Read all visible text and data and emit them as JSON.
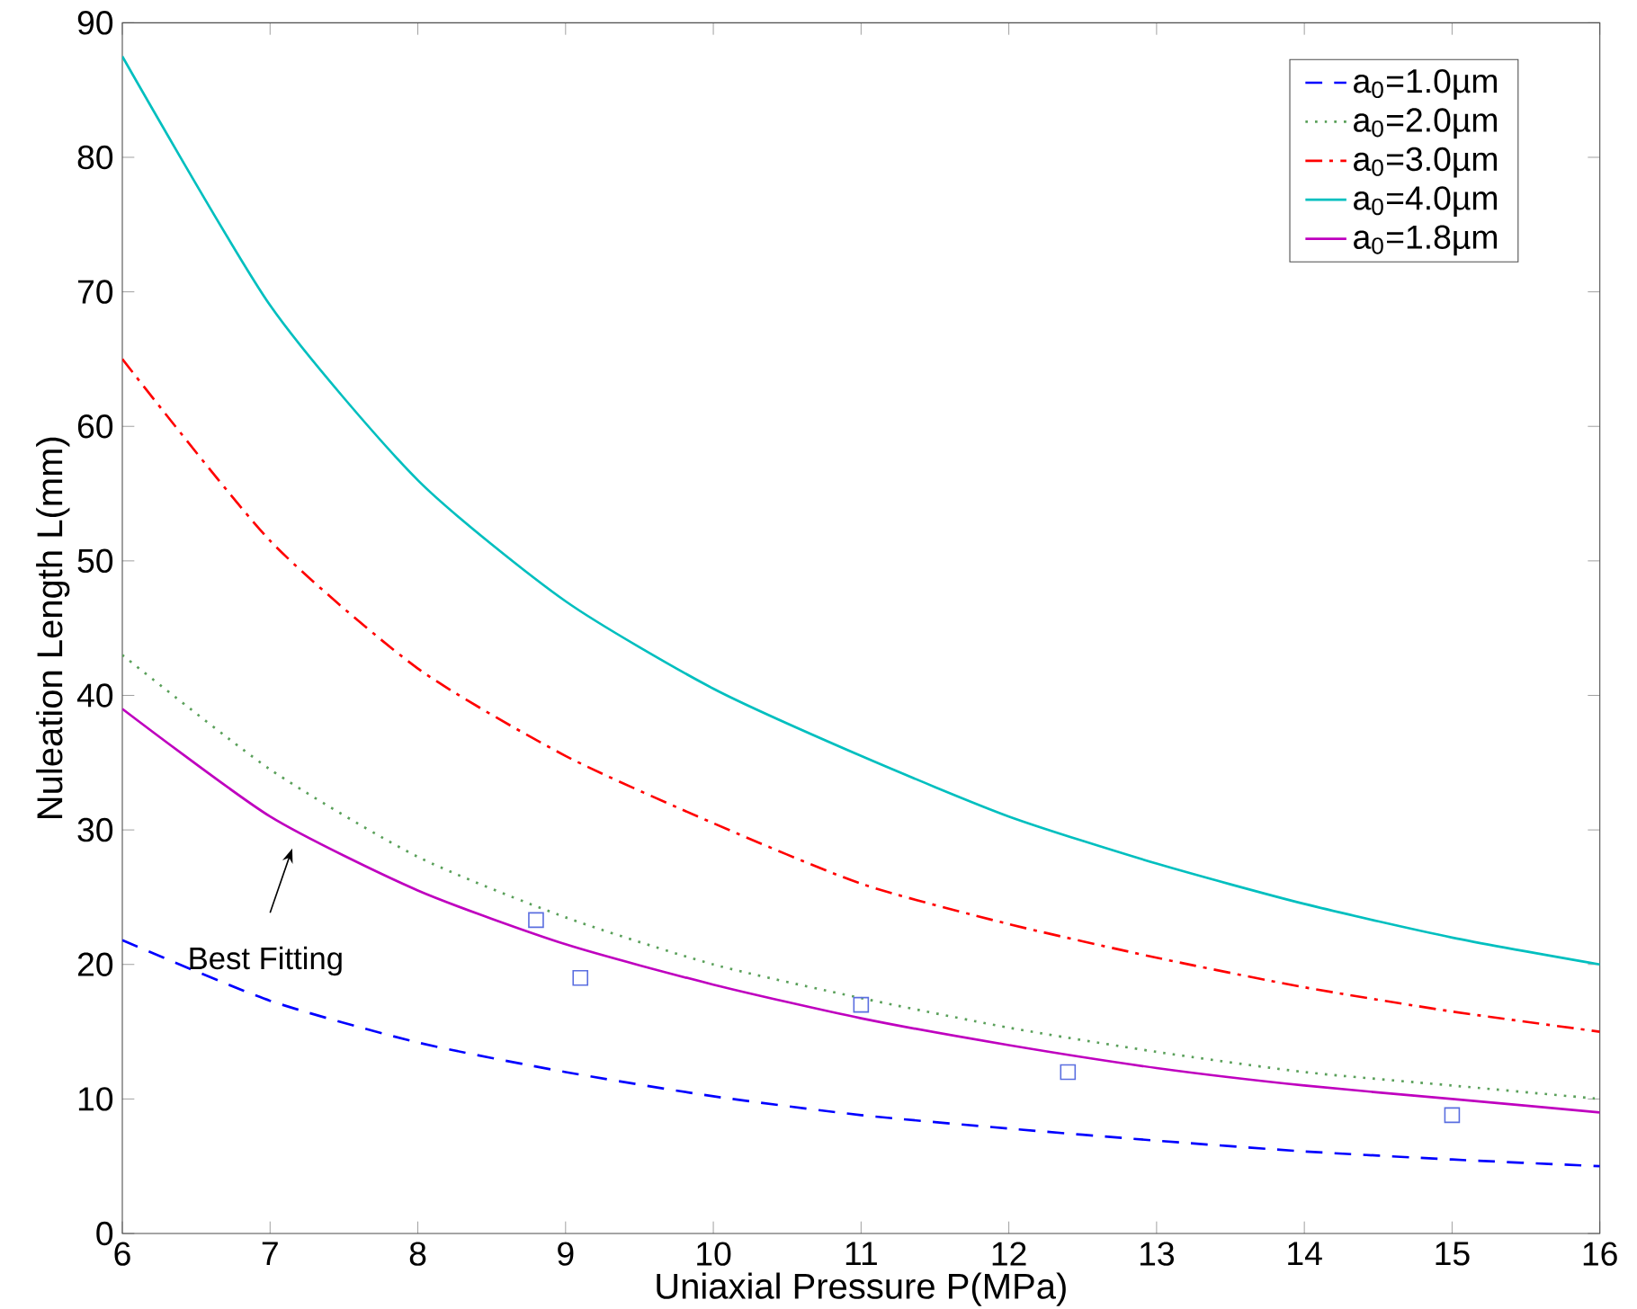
{
  "chart_data": {
    "type": "line",
    "xlabel": "Uniaxial Pressure P(MPa)",
    "ylabel": "Nuleation Length L(mm)",
    "xlim": [
      6,
      16
    ],
    "ylim": [
      0,
      90
    ],
    "xticks": [
      6,
      7,
      8,
      9,
      10,
      11,
      12,
      13,
      14,
      15,
      16
    ],
    "yticks": [
      0,
      10,
      20,
      30,
      40,
      50,
      60,
      70,
      80,
      90
    ],
    "grid": false,
    "legend": "top right",
    "annotations": [
      "Best Fitting"
    ],
    "series": [
      {
        "name": "a$_{0}$=1.0µm",
        "color": "#0000ff",
        "line_style": "dashed",
        "x": [
          6,
          7,
          8,
          9,
          10,
          11,
          12,
          13,
          14,
          15,
          16
        ],
        "values": [
          21.8,
          17.3,
          14.2,
          12,
          10.2,
          8.8,
          7.8,
          6.9,
          6.1,
          5.5,
          5
        ]
      },
      {
        "name": "a$_{0}$=2.0µm",
        "color": "#5aa05a",
        "line_style": "dotted",
        "x": [
          6,
          7,
          8,
          9,
          10,
          11,
          12,
          13,
          14,
          15,
          16
        ],
        "values": [
          43,
          34.5,
          28,
          23.5,
          20,
          17.5,
          15.3,
          13.5,
          12,
          11,
          10
        ]
      },
      {
        "name": "a$_{0}$=3.0µm",
        "color": "#ff0000",
        "line_style": "dashdot",
        "x": [
          6,
          7,
          8,
          9,
          10,
          11,
          12,
          13,
          14,
          15,
          16
        ],
        "values": [
          65,
          51.5,
          42,
          35.5,
          30.5,
          26,
          23,
          20.5,
          18.3,
          16.5,
          15
        ]
      },
      {
        "name": "a$_{0}$=4.0µm",
        "color": "#00bfbf",
        "line_style": "solid",
        "x": [
          6,
          7,
          8,
          9,
          10,
          11,
          12,
          13,
          14,
          15,
          16
        ],
        "values": [
          87.5,
          69,
          56,
          47,
          40.5,
          35.5,
          31,
          27.5,
          24.5,
          22,
          20
        ]
      },
      {
        "name": "a$_{0}$=1.8µm",
        "color": "#bf00bf",
        "line_style": "solid",
        "x": [
          6,
          7,
          8,
          9,
          10,
          11,
          12,
          13,
          14,
          15,
          16
        ],
        "values": [
          39,
          31,
          25.5,
          21.5,
          18.5,
          16,
          14,
          12.3,
          11,
          10,
          9
        ]
      },
      {
        "type": "scatter",
        "marker": "square",
        "color": "#5a6ee0",
        "x": [
          8.8,
          9.1,
          11,
          12.4,
          15
        ],
        "values": [
          23.3,
          19,
          17,
          12,
          8.8
        ]
      }
    ]
  }
}
